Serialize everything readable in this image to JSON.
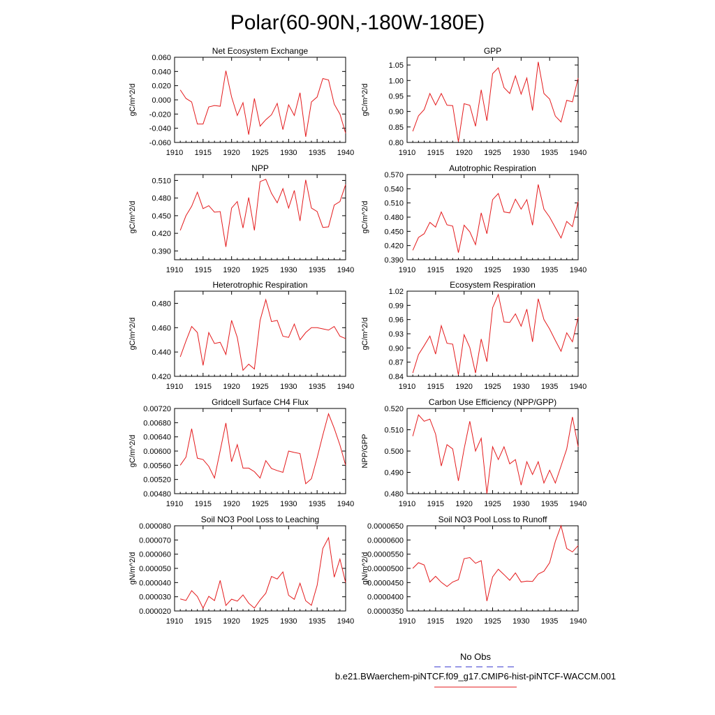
{
  "figure": {
    "title": "Polar(60-90N,-180W-180E)"
  },
  "legend": {
    "entries": [
      {
        "name": "No Obs",
        "color": "#3333cc",
        "dashed": true
      },
      {
        "name": "b.e21.BWaerchem-piNTCF.f09_g17.CMIP6-hist-piNTCF-WACCM.001",
        "color": "#e41a1c",
        "dashed": false
      }
    ]
  },
  "chart_data": [
    {
      "type": "line",
      "title": "Net Ecosystem Exchange",
      "ylabel": "gC/m^2/d",
      "xlim": [
        1910,
        1940
      ],
      "ylim": [
        -0.06,
        0.06
      ],
      "xticks": [
        1910,
        1915,
        1920,
        1925,
        1930,
        1935,
        1940
      ],
      "yticks": [
        "-0.060",
        "-0.040",
        "-0.020",
        "0.000",
        "0.020",
        "0.040",
        "0.060"
      ],
      "x": [
        1911,
        1912,
        1913,
        1914,
        1915,
        1916,
        1917,
        1918,
        1919,
        1920,
        1921,
        1922,
        1923,
        1924,
        1925,
        1926,
        1927,
        1928,
        1929,
        1930,
        1931,
        1932,
        1933,
        1934,
        1935,
        1936,
        1937,
        1938,
        1939,
        1940
      ],
      "series": [
        {
          "color": "#e41a1c",
          "values": [
            0.014,
            0.002,
            -0.003,
            -0.034,
            -0.034,
            -0.01,
            -0.008,
            -0.009,
            0.041,
            0.004,
            -0.022,
            -0.004,
            -0.049,
            0.002,
            -0.037,
            -0.028,
            -0.021,
            -0.005,
            -0.042,
            -0.007,
            -0.022,
            0.01,
            -0.052,
            -0.003,
            0.004,
            0.03,
            0.028,
            -0.006,
            -0.02,
            -0.047
          ]
        }
      ]
    },
    {
      "type": "line",
      "title": "GPP",
      "ylabel": "gC/m^2/d",
      "xlim": [
        1910,
        1940
      ],
      "ylim": [
        0.8,
        1.075
      ],
      "xticks": [
        1910,
        1915,
        1920,
        1925,
        1930,
        1935,
        1940
      ],
      "yticks": [
        "0.80",
        "0.85",
        "0.90",
        "0.95",
        "1.00",
        "1.05"
      ],
      "x": [
        1911,
        1912,
        1913,
        1914,
        1915,
        1916,
        1917,
        1918,
        1919,
        1920,
        1921,
        1922,
        1923,
        1924,
        1925,
        1926,
        1927,
        1928,
        1929,
        1930,
        1931,
        1932,
        1933,
        1934,
        1935,
        1936,
        1937,
        1938,
        1939,
        1940
      ],
      "series": [
        {
          "color": "#e41a1c",
          "values": [
            0.836,
            0.886,
            0.906,
            0.958,
            0.921,
            0.958,
            0.92,
            0.919,
            0.802,
            0.925,
            0.92,
            0.852,
            0.97,
            0.87,
            1.022,
            1.041,
            0.977,
            0.958,
            1.015,
            0.956,
            1.008,
            0.903,
            1.06,
            0.958,
            0.94,
            0.885,
            0.866,
            0.936,
            0.931,
            1.008
          ]
        }
      ]
    },
    {
      "type": "line",
      "title": "NPP",
      "ylabel": "gC/m^2/d",
      "xlim": [
        1910,
        1940
      ],
      "ylim": [
        0.375,
        0.52
      ],
      "xticks": [
        1910,
        1915,
        1920,
        1925,
        1930,
        1935,
        1940
      ],
      "yticks": [
        "0.390",
        "0.420",
        "0.450",
        "0.480",
        "0.510"
      ],
      "x": [
        1911,
        1912,
        1913,
        1914,
        1915,
        1916,
        1917,
        1918,
        1919,
        1920,
        1921,
        1922,
        1923,
        1924,
        1925,
        1926,
        1927,
        1928,
        1929,
        1930,
        1931,
        1932,
        1933,
        1934,
        1935,
        1936,
        1937,
        1938,
        1939,
        1940
      ],
      "series": [
        {
          "color": "#e41a1c",
          "values": [
            0.425,
            0.45,
            0.466,
            0.49,
            0.462,
            0.467,
            0.456,
            0.457,
            0.397,
            0.463,
            0.474,
            0.429,
            0.481,
            0.425,
            0.508,
            0.512,
            0.488,
            0.472,
            0.496,
            0.463,
            0.493,
            0.441,
            0.511,
            0.463,
            0.457,
            0.43,
            0.431,
            0.468,
            0.474,
            0.503
          ]
        }
      ]
    },
    {
      "type": "line",
      "title": "Autotrophic Respiration",
      "ylabel": "gC/m^2/d",
      "xlim": [
        1910,
        1940
      ],
      "ylim": [
        0.39,
        0.57
      ],
      "xticks": [
        1910,
        1915,
        1920,
        1925,
        1930,
        1935,
        1940
      ],
      "yticks": [
        "0.390",
        "0.420",
        "0.450",
        "0.480",
        "0.510",
        "0.540",
        "0.570"
      ],
      "x": [
        1911,
        1912,
        1913,
        1914,
        1915,
        1916,
        1917,
        1918,
        1919,
        1920,
        1921,
        1922,
        1923,
        1924,
        1925,
        1926,
        1927,
        1928,
        1929,
        1930,
        1931,
        1932,
        1933,
        1934,
        1935,
        1936,
        1937,
        1938,
        1939,
        1940
      ],
      "series": [
        {
          "color": "#e41a1c",
          "values": [
            0.41,
            0.437,
            0.445,
            0.469,
            0.459,
            0.491,
            0.464,
            0.461,
            0.405,
            0.463,
            0.449,
            0.422,
            0.489,
            0.445,
            0.517,
            0.53,
            0.491,
            0.489,
            0.518,
            0.497,
            0.517,
            0.463,
            0.549,
            0.497,
            0.48,
            0.458,
            0.436,
            0.471,
            0.46,
            0.513
          ]
        }
      ]
    },
    {
      "type": "line",
      "title": "Heterotrophic Respiration",
      "ylabel": "gC/m^2/d",
      "xlim": [
        1910,
        1940
      ],
      "ylim": [
        0.42,
        0.49
      ],
      "xticks": [
        1910,
        1915,
        1920,
        1925,
        1930,
        1935,
        1940
      ],
      "yticks": [
        "0.420",
        "0.440",
        "0.460",
        "0.480"
      ],
      "x": [
        1911,
        1912,
        1913,
        1914,
        1915,
        1916,
        1917,
        1918,
        1919,
        1920,
        1921,
        1922,
        1923,
        1924,
        1925,
        1926,
        1927,
        1928,
        1929,
        1930,
        1931,
        1932,
        1933,
        1934,
        1935,
        1936,
        1937,
        1938,
        1939,
        1940
      ],
      "series": [
        {
          "color": "#e41a1c",
          "values": [
            0.436,
            0.449,
            0.461,
            0.456,
            0.429,
            0.456,
            0.447,
            0.448,
            0.438,
            0.466,
            0.452,
            0.425,
            0.43,
            0.426,
            0.466,
            0.483,
            0.465,
            0.466,
            0.453,
            0.452,
            0.463,
            0.45,
            0.456,
            0.46,
            0.46,
            0.459,
            0.458,
            0.461,
            0.453,
            0.451
          ]
        }
      ]
    },
    {
      "type": "line",
      "title": "Ecosystem Respiration",
      "ylabel": "gC/m^2/d",
      "xlim": [
        1910,
        1940
      ],
      "ylim": [
        0.84,
        1.02
      ],
      "xticks": [
        1910,
        1915,
        1920,
        1925,
        1930,
        1935,
        1940
      ],
      "yticks": [
        "0.84",
        "0.87",
        "0.90",
        "0.93",
        "0.96",
        "0.99",
        "1.02"
      ],
      "x": [
        1911,
        1912,
        1913,
        1914,
        1915,
        1916,
        1917,
        1918,
        1919,
        1920,
        1921,
        1922,
        1923,
        1924,
        1925,
        1926,
        1927,
        1928,
        1929,
        1930,
        1931,
        1932,
        1933,
        1934,
        1935,
        1936,
        1937,
        1938,
        1939,
        1940
      ],
      "series": [
        {
          "color": "#e41a1c",
          "values": [
            0.847,
            0.886,
            0.905,
            0.925,
            0.887,
            0.947,
            0.91,
            0.908,
            0.843,
            0.928,
            0.901,
            0.847,
            0.919,
            0.871,
            0.985,
            1.013,
            0.955,
            0.954,
            0.972,
            0.946,
            0.982,
            0.913,
            1.004,
            0.96,
            0.94,
            0.916,
            0.893,
            0.932,
            0.913,
            0.965
          ]
        }
      ]
    },
    {
      "type": "line",
      "title": "Gridcell Surface CH4 Flux",
      "ylabel": "gC/m^2/d",
      "xlim": [
        1910,
        1940
      ],
      "ylim": [
        0.0048,
        0.0072
      ],
      "xticks": [
        1910,
        1915,
        1920,
        1925,
        1930,
        1935,
        1940
      ],
      "yticks": [
        "0.00480",
        "0.00520",
        "0.00560",
        "0.00600",
        "0.00640",
        "0.00680",
        "0.00720"
      ],
      "x": [
        1911,
        1912,
        1913,
        1914,
        1915,
        1916,
        1917,
        1918,
        1919,
        1920,
        1921,
        1922,
        1923,
        1924,
        1925,
        1926,
        1927,
        1928,
        1929,
        1930,
        1931,
        1932,
        1933,
        1934,
        1935,
        1936,
        1937,
        1938,
        1939,
        1940
      ],
      "series": [
        {
          "color": "#e41a1c",
          "values": [
            0.0056,
            0.00583,
            0.00663,
            0.0058,
            0.00576,
            0.00557,
            0.00524,
            0.00601,
            0.00679,
            0.0057,
            0.00618,
            0.00552,
            0.00552,
            0.00542,
            0.00524,
            0.00573,
            0.00551,
            0.00545,
            0.0054,
            0.006,
            0.00596,
            0.00593,
            0.00508,
            0.00522,
            0.00581,
            0.00645,
            0.00705,
            0.00664,
            0.00617,
            0.0056
          ]
        }
      ]
    },
    {
      "type": "line",
      "title": "Carbon Use Efficiency (NPP/GPP)",
      "ylabel": "NPP/GPP",
      "xlim": [
        1910,
        1940
      ],
      "ylim": [
        0.48,
        0.52
      ],
      "xticks": [
        1910,
        1915,
        1920,
        1925,
        1930,
        1935,
        1940
      ],
      "yticks": [
        "0.480",
        "0.490",
        "0.500",
        "0.510",
        "0.520"
      ],
      "x": [
        1911,
        1912,
        1913,
        1914,
        1915,
        1916,
        1917,
        1918,
        1919,
        1920,
        1921,
        1922,
        1923,
        1924,
        1925,
        1926,
        1927,
        1928,
        1929,
        1930,
        1931,
        1932,
        1933,
        1934,
        1935,
        1936,
        1937,
        1938,
        1939,
        1940
      ],
      "series": [
        {
          "color": "#e41a1c",
          "values": [
            0.507,
            0.517,
            0.514,
            0.515,
            0.508,
            0.493,
            0.503,
            0.501,
            0.486,
            0.501,
            0.514,
            0.5,
            0.506,
            0.48,
            0.502,
            0.496,
            0.502,
            0.494,
            0.496,
            0.484,
            0.495,
            0.489,
            0.495,
            0.485,
            0.491,
            0.485,
            0.493,
            0.501,
            0.516,
            0.502
          ]
        }
      ]
    },
    {
      "type": "line",
      "title": "Soil NO3 Pool Loss to Leaching",
      "ylabel": "gN/m^2/d",
      "xlim": [
        1910,
        1940
      ],
      "ylim": [
        2e-05,
        8e-05
      ],
      "xticks": [
        1910,
        1915,
        1920,
        1925,
        1930,
        1935,
        1940
      ],
      "yticks": [
        "0.000020",
        "0.000030",
        "0.000040",
        "0.000050",
        "0.000060",
        "0.000070",
        "0.000080"
      ],
      "x": [
        1911,
        1912,
        1913,
        1914,
        1915,
        1916,
        1917,
        1918,
        1919,
        1920,
        1921,
        1922,
        1923,
        1924,
        1925,
        1926,
        1927,
        1928,
        1929,
        1930,
        1931,
        1932,
        1933,
        1934,
        1935,
        1936,
        1937,
        1938,
        1939,
        1940
      ],
      "series": [
        {
          "color": "#e41a1c",
          "values": [
            2.85e-05,
            2.74e-05,
            3.43e-05,
            3.02e-05,
            2.2e-05,
            3.03e-05,
            2.73e-05,
            4.15e-05,
            2.39e-05,
            2.83e-05,
            2.69e-05,
            3.13e-05,
            2.55e-05,
            2.2e-05,
            2.77e-05,
            3.25e-05,
            4.43e-05,
            4.25e-05,
            4.75e-05,
            3.1e-05,
            2.82e-05,
            3.95e-05,
            2.72e-05,
            2.4e-05,
            3.8e-05,
            6.4e-05,
            7.16e-05,
            4.38e-05,
            5.65e-05,
            4e-05
          ]
        }
      ]
    },
    {
      "type": "line",
      "title": "Soil NO3 Pool Loss to Runoff",
      "ylabel": "gN/m^2/d",
      "xlim": [
        1910,
        1940
      ],
      "ylim": [
        3.5e-05,
        6.5e-05
      ],
      "xticks": [
        1910,
        1915,
        1920,
        1925,
        1930,
        1935,
        1940
      ],
      "yticks": [
        "0.0000350",
        "0.0000400",
        "0.0000450",
        "0.0000500",
        "0.0000550",
        "0.0000600",
        "0.0000650"
      ],
      "x": [
        1911,
        1912,
        1913,
        1914,
        1915,
        1916,
        1917,
        1918,
        1919,
        1920,
        1921,
        1922,
        1923,
        1924,
        1925,
        1926,
        1927,
        1928,
        1929,
        1930,
        1931,
        1932,
        1933,
        1934,
        1935,
        1936,
        1937,
        1938,
        1939,
        1940
      ],
      "series": [
        {
          "color": "#e41a1c",
          "values": [
            5e-05,
            5.2e-05,
            5.12e-05,
            4.52e-05,
            4.72e-05,
            4.51e-05,
            4.36e-05,
            4.52e-05,
            4.6e-05,
            5.34e-05,
            5.38e-05,
            5.18e-05,
            5.27e-05,
            3.85e-05,
            4.7e-05,
            4.97e-05,
            4.78e-05,
            4.58e-05,
            4.84e-05,
            4.52e-05,
            4.55e-05,
            4.54e-05,
            4.8e-05,
            4.9e-05,
            5.2e-05,
            5.95e-05,
            6.5e-05,
            5.7e-05,
            5.58e-05,
            5.8e-05
          ]
        }
      ]
    }
  ]
}
